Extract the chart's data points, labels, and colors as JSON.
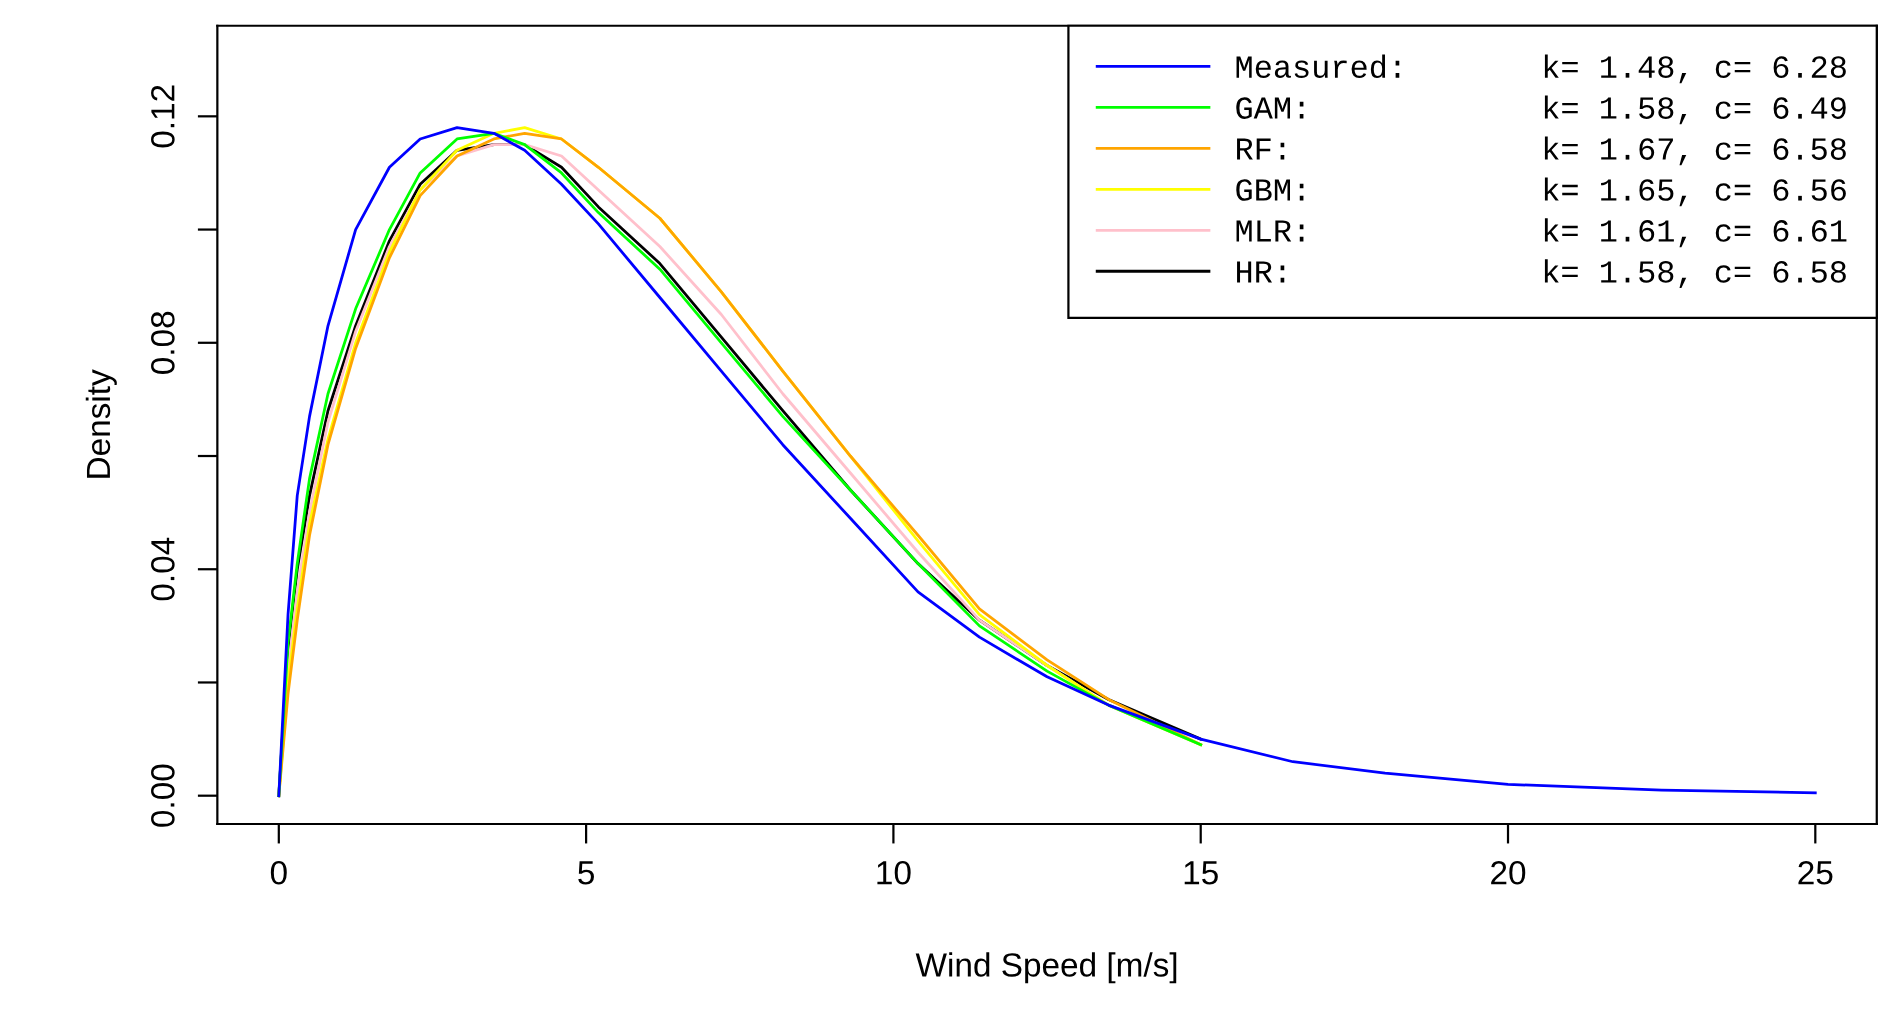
{
  "chart_data": {
    "type": "line",
    "xlabel": "Wind Speed [m/s]",
    "ylabel": "Density",
    "xlim": [
      -1,
      26
    ],
    "xticks": [
      0,
      5,
      10,
      15,
      20,
      25
    ],
    "ylim": [
      -0.005,
      0.136
    ],
    "yticks": [
      {
        "value": 0,
        "label": "0.00"
      },
      {
        "value": 0.02,
        "label": null
      },
      {
        "value": 0.04,
        "label": "0.04"
      },
      {
        "value": 0.06,
        "label": null
      },
      {
        "value": 0.08,
        "label": "0.08"
      },
      {
        "value": 0.1,
        "label": null
      },
      {
        "value": 0.12,
        "label": "0.12"
      }
    ],
    "grid": false,
    "legend": "top right",
    "marker": "none",
    "line_style": "solid",
    "x": [
      0,
      0.15,
      0.3,
      0.5,
      0.8,
      1.25,
      1.8,
      2.3,
      2.9,
      3.5,
      4,
      4.6,
      5.2,
      6.2,
      7.2,
      8.2,
      9.3,
      10.4,
      11.4,
      12.5,
      13.5,
      15,
      16.5,
      18,
      20,
      22.5,
      25
    ],
    "series": [
      {
        "name": "Measured:       k= 1.48, c= 6.28",
        "color": "#0000ff",
        "values": [
          0,
          0.032,
          0.053,
          0.067,
          0.083,
          0.1,
          0.111,
          0.116,
          0.118,
          0.117,
          0.114,
          0.108,
          0.101,
          0.088,
          0.075,
          0.062,
          0.049,
          0.036,
          0.028,
          0.021,
          0.016,
          0.01,
          0.006,
          0.004,
          0.002,
          0.001,
          0.0005
        ]
      },
      {
        "name": "GAM:            k= 1.58, c= 6.49",
        "color": "#00ff00",
        "values": [
          0,
          0.027,
          0.041,
          0.056,
          0.071,
          0.086,
          0.1,
          0.11,
          0.116,
          0.117,
          0.115,
          0.11,
          0.103,
          0.093,
          0.08,
          0.067,
          0.054,
          0.041,
          0.03,
          0.022,
          0.016,
          0.009,
          null,
          null,
          null,
          null,
          null
        ]
      },
      {
        "name": "RF:             k= 1.67, c= 6.58",
        "color": "#ffa500",
        "values": [
          0,
          0.018,
          0.031,
          0.046,
          0.062,
          0.079,
          0.095,
          0.106,
          0.113,
          0.116,
          0.117,
          0.116,
          0.111,
          0.102,
          0.089,
          0.075,
          0.06,
          0.046,
          0.033,
          0.024,
          0.017,
          0.009,
          null,
          null,
          null,
          null,
          null
        ]
      },
      {
        "name": "GBM:            k= 1.65, c= 6.56",
        "color": "#ffff00",
        "values": [
          0,
          0.02,
          0.033,
          0.048,
          0.063,
          0.08,
          0.096,
          0.107,
          0.114,
          0.117,
          0.118,
          0.116,
          0.111,
          0.102,
          0.089,
          0.075,
          0.06,
          0.045,
          0.032,
          0.023,
          0.016,
          0.009,
          null,
          null,
          null,
          null,
          null
        ]
      },
      {
        "name": "MLR:            k= 1.61, c= 6.61",
        "color": "#ffc0cb",
        "values": [
          0,
          0.022,
          0.036,
          0.05,
          0.066,
          0.082,
          0.097,
          0.107,
          0.113,
          0.115,
          0.115,
          0.113,
          0.107,
          0.097,
          0.085,
          0.071,
          0.057,
          0.043,
          0.031,
          0.023,
          0.016,
          0.009,
          null,
          null,
          null,
          null,
          null
        ]
      },
      {
        "name": "HR:             k= 1.58, c= 6.58",
        "color": "#000000",
        "values": [
          0,
          0.026,
          0.04,
          0.053,
          0.068,
          0.083,
          0.098,
          0.108,
          0.114,
          0.115,
          0.115,
          0.111,
          0.104,
          0.094,
          0.081,
          0.068,
          0.054,
          0.041,
          0.031,
          0.023,
          0.017,
          0.01,
          null,
          null,
          null,
          null,
          null
        ]
      }
    ]
  }
}
